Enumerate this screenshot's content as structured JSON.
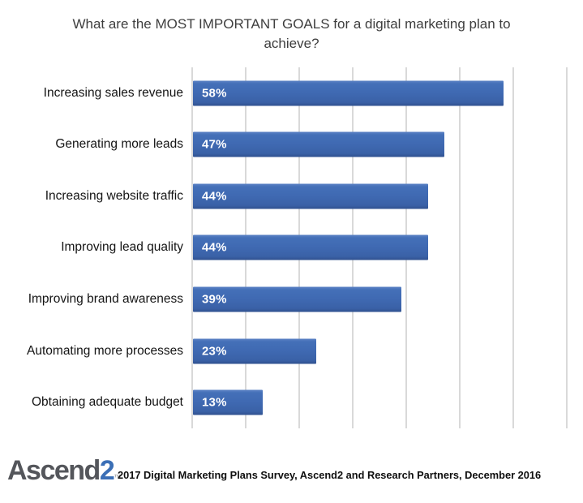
{
  "title": {
    "text": "What are the MOST IMPORTANT GOALS for a digital marketing plan to achieve?"
  },
  "chart_data": {
    "type": "bar",
    "orientation": "horizontal",
    "title": "What are the MOST IMPORTANT GOALS for a digital marketing plan to achieve?",
    "categories": [
      "Increasing sales revenue",
      "Generating more leads",
      "Increasing website traffic",
      "Improving lead quality",
      "Improving brand awareness",
      "Automating more processes",
      "Obtaining adequate budget"
    ],
    "values": [
      58,
      47,
      44,
      44,
      39,
      23,
      13
    ],
    "value_labels": [
      "58%",
      "47%",
      "44%",
      "44%",
      "39%",
      "23%",
      "13%"
    ],
    "unit": "%",
    "xlim": [
      0,
      70
    ],
    "gridline_interval": 10,
    "grid": true,
    "legend": false,
    "axis_tick_labels_visible": false,
    "bar_color": "#3F69B2",
    "grid_color": "#D9D9D9"
  },
  "footer": {
    "logo": {
      "word": "Ascend",
      "number": "2",
      "trademark": "™"
    },
    "source_text": "2017 Digital Marketing Plans Survey, Ascend2 and Research Partners, December 2016"
  },
  "colors": {
    "background": "#FFFFFF",
    "title_text": "#3E3E3E",
    "category_text": "#141414",
    "bar_value_text": "#FFFFFF",
    "logo_word": "#54565B",
    "logo_number": "#3B6FB6",
    "source_text": "#0E0E0E"
  }
}
